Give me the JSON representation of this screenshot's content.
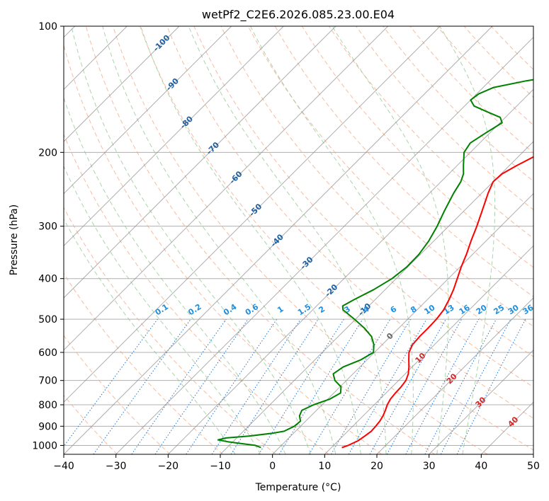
{
  "chart_data": {
    "type": "line",
    "title": "wetPf2_C2E6.2026.085.23.00.E04",
    "xlabel": "Temperature (°C)",
    "ylabel": "Pressure (hPa)",
    "xlim": [
      -40,
      50
    ],
    "ylim": [
      1050,
      100
    ],
    "yscale": "log",
    "x_ticks": [
      -40,
      -30,
      -20,
      -10,
      0,
      10,
      20,
      30,
      40,
      50
    ],
    "y_ticks": [
      100,
      200,
      300,
      400,
      500,
      600,
      700,
      800,
      900,
      1000
    ],
    "isotherm_skew": 1.0,
    "isotherms": [
      -130,
      -120,
      -110,
      -100,
      -90,
      -80,
      -70,
      -60,
      -50,
      -40,
      -30,
      -20,
      -10,
      0,
      10,
      20,
      30,
      40,
      50
    ],
    "isotherm_labels": [
      {
        "text": "-100",
        "t": -100,
        "p": 110
      },
      {
        "text": "-90",
        "t": -90,
        "p": 138
      },
      {
        "text": "-80",
        "t": -80,
        "p": 170
      },
      {
        "text": "-70",
        "t": -70,
        "p": 196
      },
      {
        "text": "-60",
        "t": -60,
        "p": 230
      },
      {
        "text": "-50",
        "t": -50,
        "p": 275
      },
      {
        "text": "-40",
        "t": -40,
        "p": 325
      },
      {
        "text": "-30",
        "t": -30,
        "p": 368
      },
      {
        "text": "-20",
        "t": -20,
        "p": 428
      },
      {
        "text": "-10",
        "t": -10,
        "p": 475
      },
      {
        "text": "0",
        "t": 0,
        "p": 550
      },
      {
        "text": "10",
        "t": 10,
        "p": 620
      },
      {
        "text": "20",
        "t": 20,
        "p": 695
      },
      {
        "text": "30",
        "t": 30,
        "p": 790
      },
      {
        "text": "40",
        "t": 40,
        "p": 880
      }
    ],
    "dry_adiabats_theta": [
      230,
      240,
      250,
      260,
      270,
      280,
      290,
      300,
      310,
      320,
      330,
      340,
      350,
      360,
      370,
      380,
      390,
      400,
      410,
      420,
      430,
      440,
      450
    ],
    "moist_adiabats_start": [
      -10,
      -5,
      0,
      5,
      10,
      15,
      20,
      25,
      30,
      35
    ],
    "mixing_ratios": [
      0.1,
      0.2,
      0.4,
      0.6,
      1,
      1.5,
      2,
      3,
      4,
      6,
      8,
      10,
      13,
      16,
      20,
      25,
      30,
      36
    ],
    "mixing_ratio_labels": [
      "0.1",
      "0.2",
      "0.4",
      "0.6",
      "1",
      "1.5",
      "2",
      "3",
      "4",
      "6",
      "8",
      "10",
      "13",
      "16",
      "20",
      "25",
      "30",
      "36"
    ],
    "mixing_ratio_label_p": 480,
    "series": [
      {
        "name": "Temperature",
        "color": "#ff0000",
        "points": [
          [
            1012,
            12
          ],
          [
            1000,
            12.8
          ],
          [
            975,
            13.8
          ],
          [
            950,
            14.2
          ],
          [
            925,
            14.5
          ],
          [
            900,
            14.4
          ],
          [
            875,
            14.2
          ],
          [
            850,
            13.8
          ],
          [
            825,
            13.2
          ],
          [
            800,
            12.5
          ],
          [
            775,
            12
          ],
          [
            750,
            11.8
          ],
          [
            725,
            11.7
          ],
          [
            700,
            11.4
          ],
          [
            675,
            10.6
          ],
          [
            650,
            9.4
          ],
          [
            625,
            8
          ],
          [
            600,
            6.6
          ],
          [
            575,
            5.8
          ],
          [
            550,
            5.6
          ],
          [
            525,
            5.6
          ],
          [
            500,
            5.5
          ],
          [
            475,
            5.1
          ],
          [
            450,
            4.2
          ],
          [
            425,
            3.1
          ],
          [
            400,
            1.7
          ],
          [
            375,
            0.2
          ],
          [
            350,
            -1.2
          ],
          [
            325,
            -2.9
          ],
          [
            300,
            -4.6
          ],
          [
            275,
            -6.6
          ],
          [
            250,
            -8.8
          ],
          [
            235,
            -10
          ],
          [
            225,
            -9.8
          ],
          [
            215,
            -8.6
          ],
          [
            200,
            -6.2
          ],
          [
            185,
            -3.2
          ],
          [
            170,
            0.4
          ],
          [
            160,
            3.2
          ],
          [
            150,
            6.2
          ],
          [
            140,
            8.4
          ],
          [
            130,
            10.2
          ],
          [
            120,
            12.6
          ],
          [
            110,
            15
          ],
          [
            100,
            16.7
          ]
        ]
      },
      {
        "name": "Dewpoint",
        "color": "#008000",
        "points": [
          [
            1012,
            -3.5
          ],
          [
            1000,
            -5
          ],
          [
            990,
            -8
          ],
          [
            980,
            -11
          ],
          [
            970,
            -13.2
          ],
          [
            960,
            -12
          ],
          [
            950,
            -8
          ],
          [
            935,
            -4
          ],
          [
            925,
            -2.2
          ],
          [
            900,
            -1.2
          ],
          [
            875,
            -1
          ],
          [
            850,
            -2.2
          ],
          [
            825,
            -2.8
          ],
          [
            800,
            -1.6
          ],
          [
            775,
            0.4
          ],
          [
            750,
            1.3
          ],
          [
            725,
            0.2
          ],
          [
            700,
            -2.2
          ],
          [
            675,
            -3.8
          ],
          [
            650,
            -3.2
          ],
          [
            625,
            -1.2
          ],
          [
            600,
            -0.2
          ],
          [
            575,
            -1.6
          ],
          [
            550,
            -3.6
          ],
          [
            525,
            -6.6
          ],
          [
            500,
            -10.2
          ],
          [
            475,
            -14.2
          ],
          [
            465,
            -15
          ],
          [
            450,
            -14.1
          ],
          [
            425,
            -12.2
          ],
          [
            400,
            -10.8
          ],
          [
            375,
            -10.2
          ],
          [
            350,
            -10.3
          ],
          [
            325,
            -11
          ],
          [
            300,
            -12.2
          ],
          [
            275,
            -13.8
          ],
          [
            250,
            -15.4
          ],
          [
            235,
            -16.2
          ],
          [
            225,
            -17.2
          ],
          [
            215,
            -18.8
          ],
          [
            200,
            -21.2
          ],
          [
            190,
            -21.8
          ],
          [
            180,
            -20.8
          ],
          [
            170,
            -19.6
          ],
          [
            165,
            -21
          ],
          [
            160,
            -24.6
          ],
          [
            155,
            -28.2
          ],
          [
            150,
            -30
          ],
          [
            145,
            -29.6
          ],
          [
            140,
            -28
          ],
          [
            135,
            -23
          ],
          [
            130,
            -16
          ],
          [
            125,
            -12
          ],
          [
            120,
            -10.6
          ],
          [
            115,
            -11
          ],
          [
            110,
            -13.4
          ],
          [
            105,
            -14.1
          ],
          [
            100,
            -11
          ]
        ]
      }
    ]
  }
}
